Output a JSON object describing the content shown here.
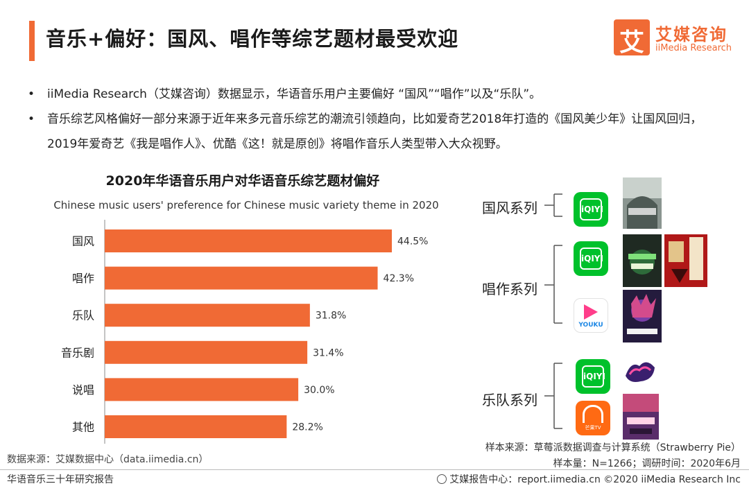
{
  "header": {
    "title": "音乐+偏好：国风、唱作等综艺题材最受欢迎",
    "logo_char": "艾",
    "logo_cn": "艾媒咨询",
    "logo_en": "iiMedia Research"
  },
  "bullets": [
    "iiMedia Research（艾媒咨询）数据显示，华语音乐用户主要偏好 “国风”“唱作”以及“乐队”。",
    "音乐综艺风格偏好一部分来源于近年来多元音乐综艺的潮流引领趋向，比如爱奇艺2018年打造的《国风美少年》让国风回归，2019年爱奇艺《我是唱作人》、优酷《这！就是原创》将唱作音乐人类型带入大众视野。"
  ],
  "chart_data": {
    "type": "bar",
    "orientation": "horizontal",
    "title": "2020年华语音乐用户对华语音乐综艺题材偏好",
    "subtitle": "Chinese music users' preference for Chinese music variety theme in 2020",
    "categories": [
      "国风",
      "唱作",
      "乐队",
      "音乐剧",
      "说唱",
      "其他"
    ],
    "values": [
      44.5,
      42.3,
      31.8,
      31.4,
      30.0,
      28.2
    ],
    "value_labels": [
      "44.5%",
      "42.3%",
      "31.8%",
      "31.4%",
      "30.0%",
      "28.2%"
    ],
    "bar_color": "#f06a35",
    "xlim": [
      0,
      50
    ],
    "grid": false
  },
  "series_tree": {
    "groups": [
      {
        "label": "国风系列",
        "platforms": [
          "iqiyi"
        ]
      },
      {
        "label": "唱作系列",
        "platforms": [
          "iqiyi",
          "youku"
        ]
      },
      {
        "label": "乐队系列",
        "platforms": [
          "iqiyi",
          "mgtv"
        ]
      }
    ],
    "platform_labels": {
      "iqiyi": "iQIYI",
      "youku": "YOUKU",
      "mgtv": "芒果TV"
    }
  },
  "sources": {
    "left": "数据来源：艾媒数据中心（data.iimedia.cn）",
    "right_line1": "样本来源：草莓派数据调查与计算系统（Strawberry Pie）",
    "right_line2": "样本量：N=1266；调研时间：2020年6月"
  },
  "footer": {
    "left": "华语音乐三十年研究报告",
    "right": "艾媒报告中心：report.iimedia.cn  ©2020  iiMedia Research  Inc"
  },
  "colors": {
    "accent": "#f06a35",
    "iqiyi": "#00c12b",
    "mgtv": "#ff6a13",
    "youku": "#ff3d8a"
  }
}
